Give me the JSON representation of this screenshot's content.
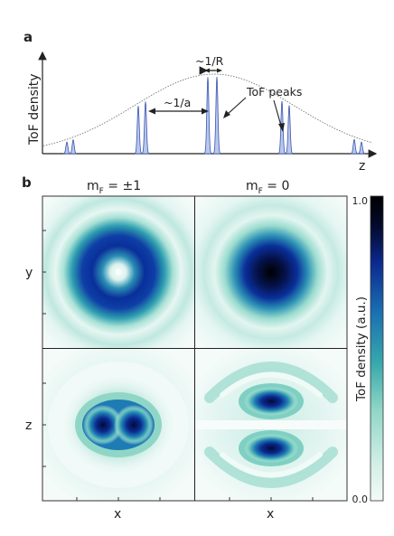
{
  "panel_a": {
    "letter": "a",
    "y_axis_label": "ToF density",
    "x_axis_label": "z",
    "ann_R": "~1/R",
    "ann_a": "~1/a",
    "ann_peaks": "ToF peaks"
  },
  "panel_b": {
    "letter": "b",
    "col_left_title_main": "m",
    "col_left_title_sub": "F",
    "col_left_title_rest": " = ±1",
    "col_right_title_main": "m",
    "col_right_title_sub": "F",
    "col_right_title_rest": " = 0",
    "row_top_label": "y",
    "row_bottom_label": "z",
    "x_label_left": "x",
    "x_label_right": "x",
    "colorbar_title": "ToF density (a.u.)",
    "colorbar_max": "1.0",
    "colorbar_min": "0.0"
  },
  "colors": {
    "peak_fill": "#b9c8ec",
    "peak_stroke": "#3a56b0",
    "envelope": "#777777",
    "cmap": [
      "#f3fbf8",
      "#d2efe6",
      "#8fd6c6",
      "#38a9ad",
      "#1a6fb2",
      "#0b2a8f",
      "#040a2e",
      "#000000"
    ]
  }
}
